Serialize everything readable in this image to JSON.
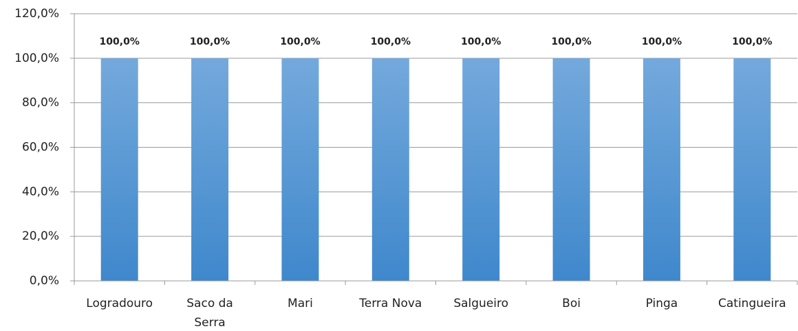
{
  "chart_data": {
    "type": "bar",
    "categories": [
      "Logradouro",
      "Saco da Serra",
      "Mari",
      "Terra Nova",
      "Salgueiro",
      "Boi",
      "Pinga",
      "Catingueira"
    ],
    "values": [
      100,
      100,
      100,
      100,
      100,
      100,
      100,
      100
    ],
    "value_labels": [
      "100,0%",
      "100,0%",
      "100,0%",
      "100,0%",
      "100,0%",
      "100,0%",
      "100,0%",
      "100,0%"
    ],
    "color": "#5b9bd5",
    "ylim": [
      0,
      120
    ],
    "yticks": [
      {
        "value": 0,
        "label": "0,0%"
      },
      {
        "value": 20,
        "label": "20,0%"
      },
      {
        "value": 40,
        "label": "40,0%"
      },
      {
        "value": 60,
        "label": "60,0%"
      },
      {
        "value": 80,
        "label": "80,0%"
      },
      {
        "value": 100,
        "label": "100,0%"
      },
      {
        "value": 120,
        "label": "120,0%"
      }
    ],
    "grid": true
  }
}
